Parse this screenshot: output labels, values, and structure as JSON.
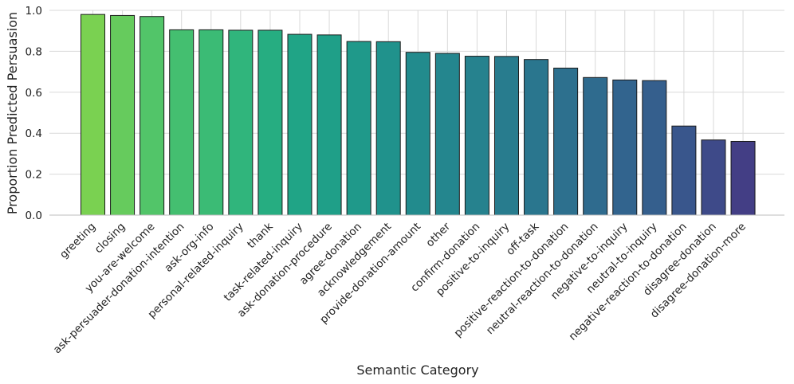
{
  "chart_data": {
    "type": "bar",
    "title": "",
    "xlabel": "Semantic Category",
    "ylabel": "Proportion Predicted Persuasion",
    "ylim": [
      0,
      1.0
    ],
    "yticks": [
      0.0,
      0.2,
      0.4,
      0.6,
      0.8,
      1.0
    ],
    "ytick_labels": [
      "0.0",
      "0.2",
      "0.4",
      "0.6",
      "0.8",
      "1.0"
    ],
    "grid": true,
    "categories": [
      "greeting",
      "closing",
      "you-are-welcome",
      "ask-persuader-donation-intention",
      "ask-org-info",
      "personal-related-inquiry",
      "thank",
      "task-related-inquiry",
      "ask-donation-procedure",
      "agree-donation",
      "acknowledgement",
      "provide-donation-amount",
      "other",
      "confirm-donation",
      "positive-to-inquiry",
      "off-task",
      "positive-reaction-to-donation",
      "neutral-reaction-to-donation",
      "negative-to-inquiry",
      "neutral-to-inquiry",
      "negative-reaction-to-donation",
      "disagree-donation",
      "disagree-donation-more"
    ],
    "values": [
      0.98,
      0.975,
      0.97,
      0.905,
      0.905,
      0.903,
      0.903,
      0.883,
      0.88,
      0.848,
      0.847,
      0.795,
      0.79,
      0.776,
      0.775,
      0.76,
      0.718,
      0.672,
      0.66,
      0.657,
      0.435,
      0.367,
      0.36
    ],
    "colors": [
      "#7ad151",
      "#66cb5d",
      "#52c569",
      "#44bf70",
      "#3bbb75",
      "#30b57c",
      "#26ad81",
      "#20a486",
      "#1f9f88",
      "#1f998a",
      "#20928c",
      "#228b8d",
      "#24868e",
      "#26828e",
      "#287c8e",
      "#2a768e",
      "#2d708e",
      "#2f6b8e",
      "#32648e",
      "#355f8d",
      "#39568c",
      "#3e4a89",
      "#433e85"
    ]
  }
}
